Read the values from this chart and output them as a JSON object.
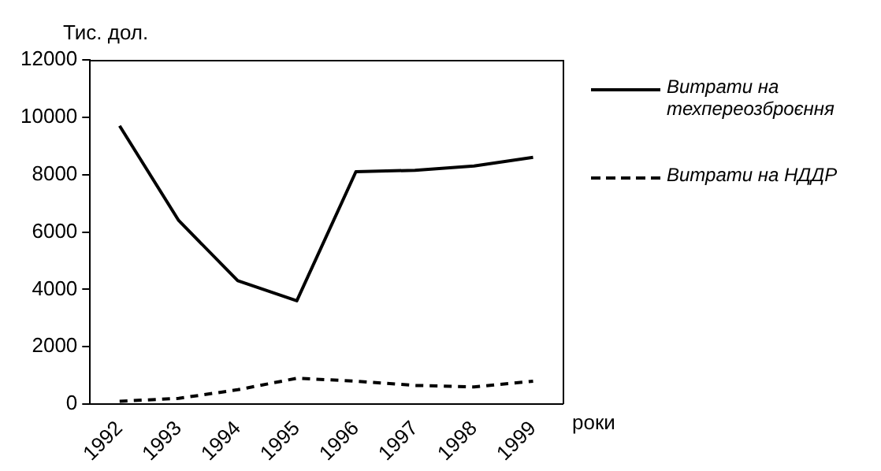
{
  "chart_data": {
    "type": "line",
    "ylabel": "Тис. дол.",
    "xlabel": "роки",
    "categories": [
      "1992",
      "1993",
      "1994",
      "1995",
      "1996",
      "1997",
      "1998",
      "1999"
    ],
    "series": [
      {
        "name": "Витрати на техпереозброєння",
        "color": "#000000",
        "line_style": "solid",
        "values": [
          9700,
          6400,
          4300,
          3600,
          8100,
          8150,
          8300,
          8600
        ]
      },
      {
        "name": "Витрати на НДДР",
        "color": "#000000",
        "line_style": "dashed",
        "values": [
          100,
          200,
          500,
          900,
          800,
          650,
          600,
          800
        ]
      }
    ],
    "ylim": [
      0,
      12000
    ],
    "yticks": [
      0,
      2000,
      4000,
      6000,
      8000,
      10000,
      12000
    ],
    "grid": false,
    "legend": "right",
    "marker": "none"
  }
}
